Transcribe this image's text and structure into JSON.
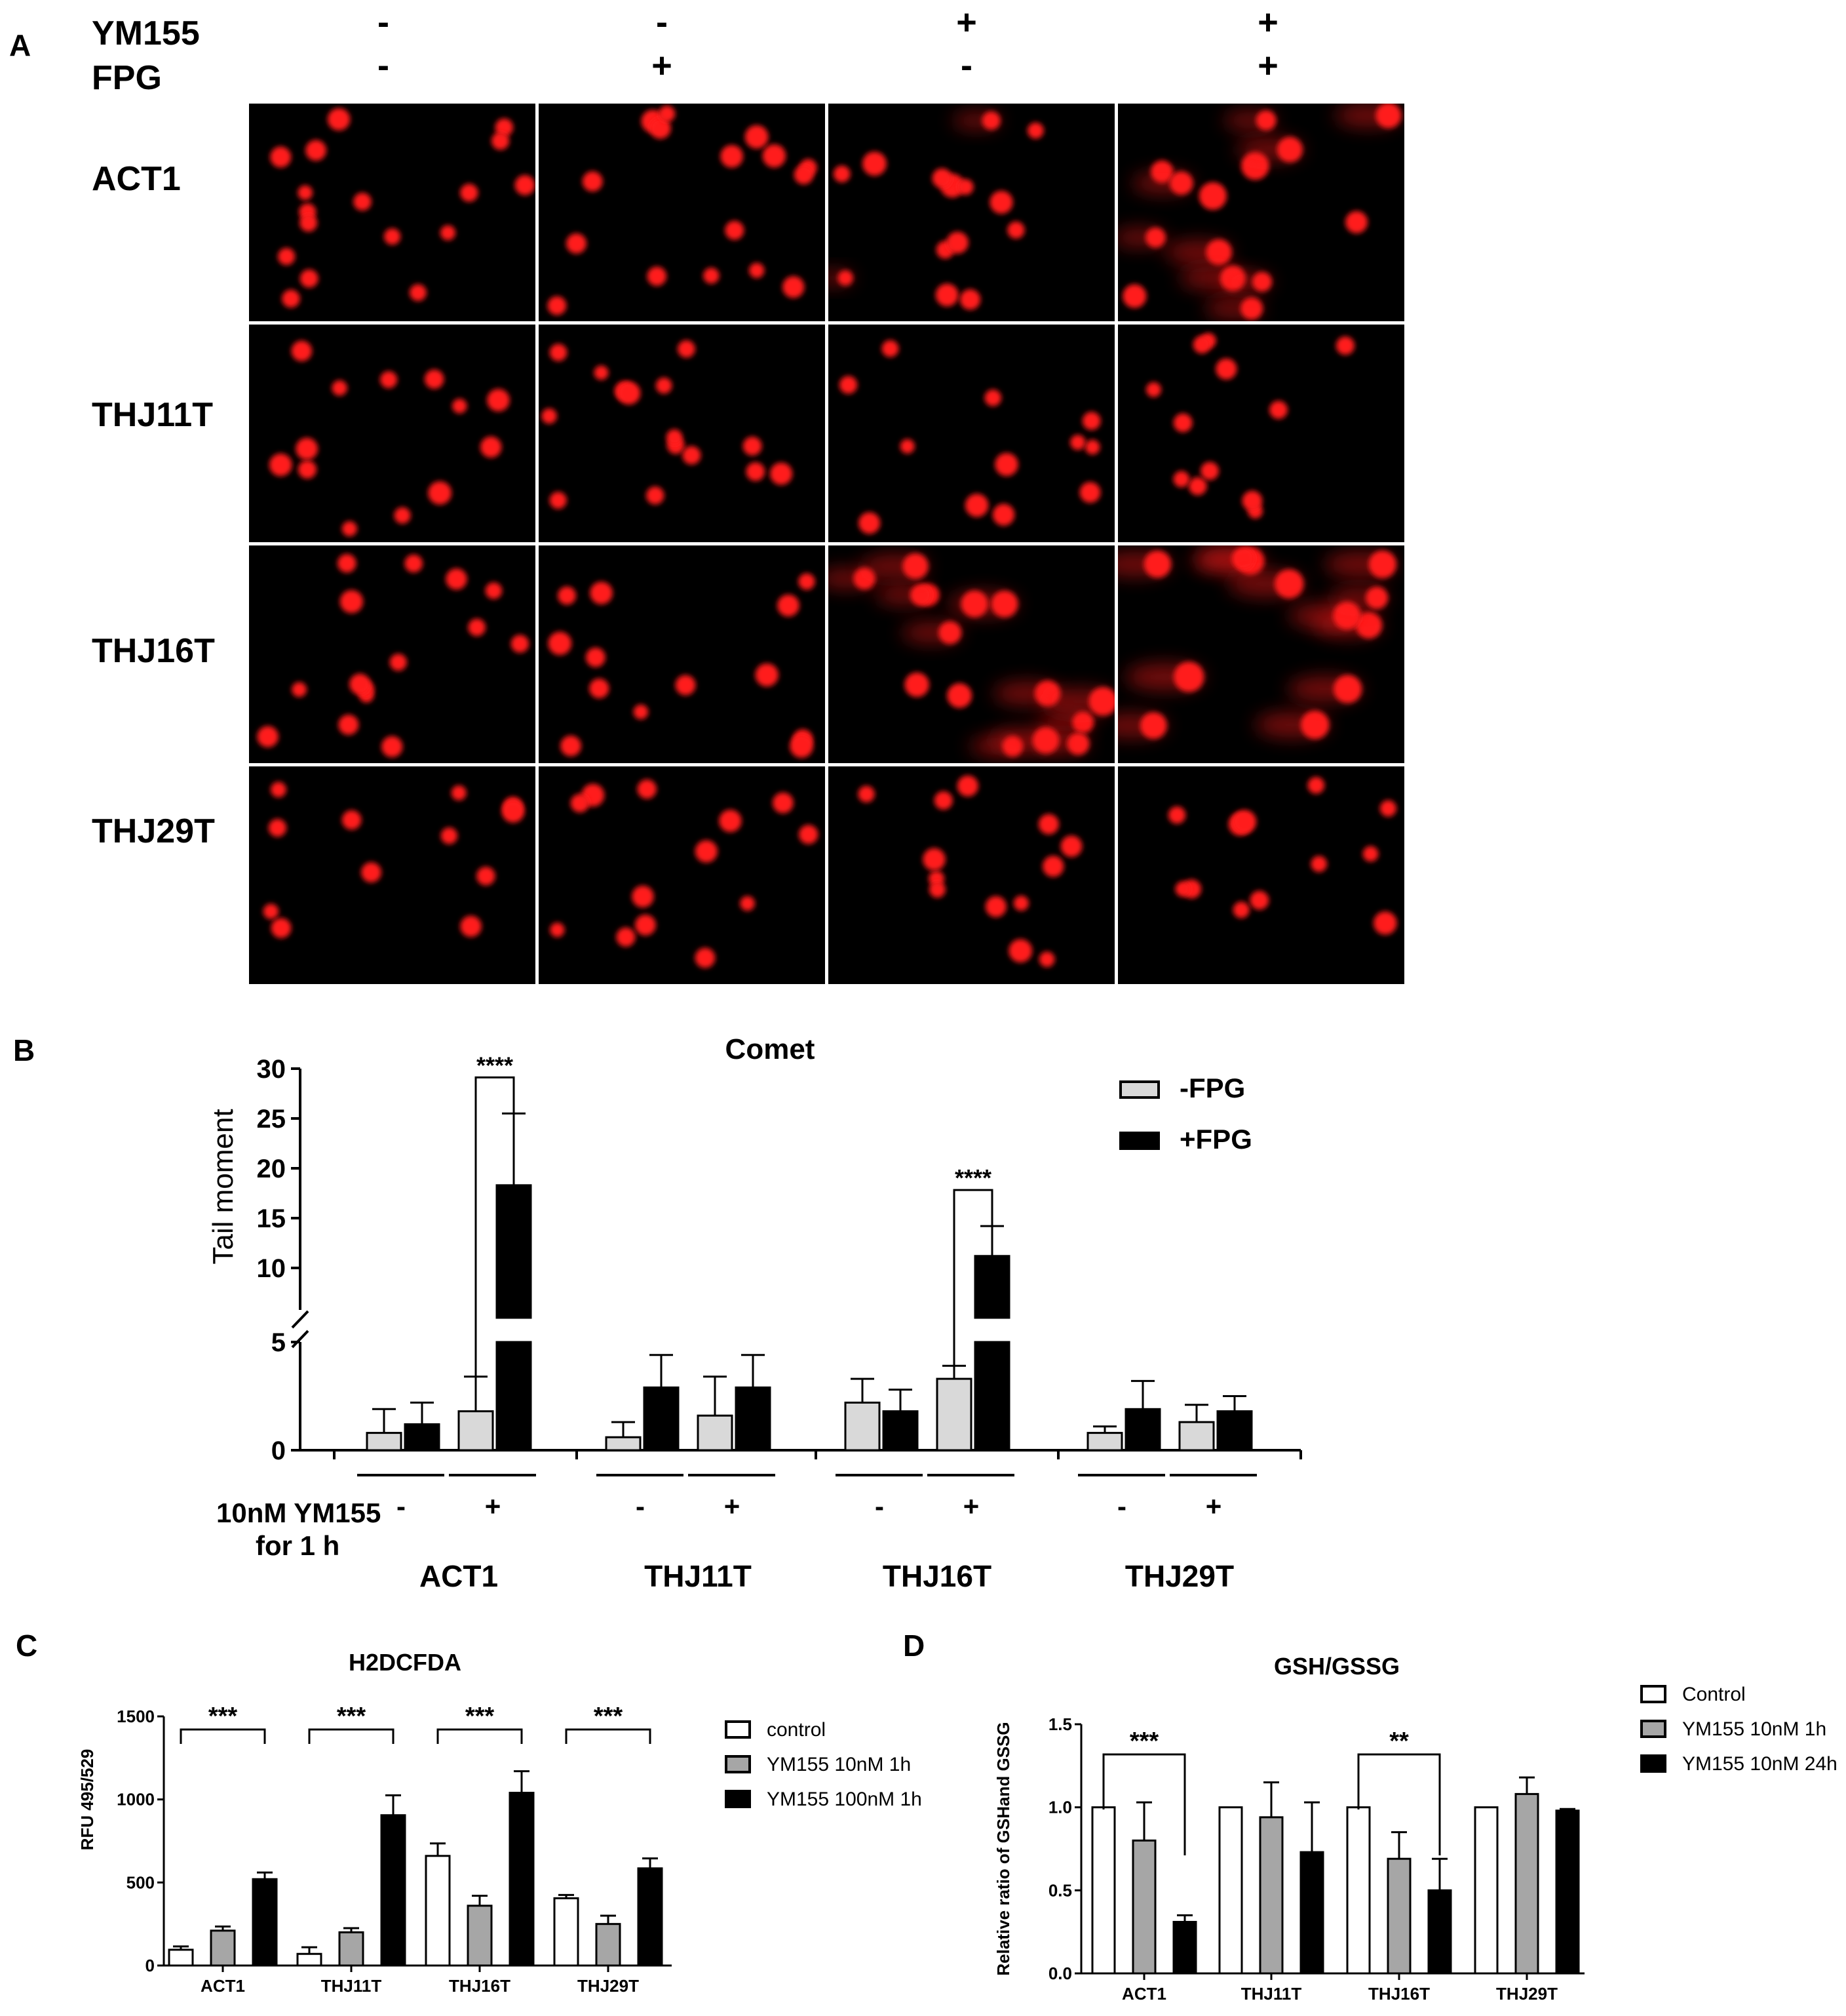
{
  "panel_a": {
    "label": "A",
    "treatments": [
      {
        "name": "YM155",
        "signs": [
          "-",
          "-",
          "+",
          "+"
        ]
      },
      {
        "name": "FPG",
        "signs": [
          "-",
          "+",
          "-",
          "+"
        ]
      }
    ],
    "rows": [
      "ACT1",
      "THJ11T",
      "THJ16T",
      "THJ29T"
    ],
    "image_style": {
      "background": "#000000",
      "nucleus": "#ff1a1a"
    },
    "comet_level": [
      [
        0,
        0,
        0.1,
        0.6
      ],
      [
        0,
        0,
        0,
        0
      ],
      [
        0,
        0,
        0.7,
        1
      ],
      [
        0,
        0,
        0,
        0
      ]
    ]
  },
  "chart_data": [
    {
      "panel": "B",
      "type": "bar",
      "title": "Comet",
      "ylabel": "Tail moment",
      "yaxis_break": {
        "lower": [
          0,
          5
        ],
        "upper": [
          5,
          30
        ]
      },
      "yticks_lower": [
        "0",
        "5"
      ],
      "yticks_upper": [
        "10",
        "15",
        "20",
        "25",
        "30"
      ],
      "xrow_label": [
        "10nM YM155",
        "for 1 h"
      ],
      "groups": [
        "ACT1",
        "THJ11T",
        "THJ16T",
        "THJ29T"
      ],
      "conditions": [
        "-",
        "+"
      ],
      "series": [
        {
          "name": "-FPG",
          "color": "#d9d9d9",
          "values": [
            0.8,
            1.8,
            0.6,
            1.6,
            2.2,
            3.3,
            0.8,
            1.3
          ],
          "errors": [
            1.1,
            1.6,
            0.7,
            1.8,
            1.1,
            0.6,
            0.3,
            0.8
          ]
        },
        {
          "name": "+FPG",
          "color": "#000000",
          "values": [
            1.2,
            18.3,
            2.9,
            2.9,
            1.8,
            11.2,
            1.9,
            1.8
          ],
          "errors": [
            1.0,
            7.2,
            1.5,
            1.5,
            1.0,
            3.0,
            1.3,
            0.7
          ]
        }
      ],
      "significance": [
        {
          "group": "ACT1",
          "label": "****"
        },
        {
          "group": "THJ16T",
          "label": "****"
        }
      ],
      "legend_position": "top-right"
    },
    {
      "panel": "C",
      "type": "bar",
      "title": "H2DCFDA",
      "ylabel": "RFU 495/529",
      "ylim": [
        0,
        1500
      ],
      "yticks": [
        "0",
        "500",
        "1000",
        "1500"
      ],
      "categories": [
        "ACT1",
        "THJ11T",
        "THJ16T",
        "THJ29T"
      ],
      "series": [
        {
          "name": "control",
          "color": "#ffffff",
          "values": [
            95,
            70,
            660,
            405
          ],
          "errors": [
            20,
            40,
            75,
            20
          ]
        },
        {
          "name": "YM155 10nM 1h",
          "color": "#a6a6a6",
          "values": [
            210,
            200,
            360,
            250
          ],
          "errors": [
            25,
            25,
            60,
            50
          ]
        },
        {
          "name": "YM155 100nM 1h",
          "color": "#000000",
          "values": [
            520,
            905,
            1040,
            585
          ],
          "errors": [
            40,
            120,
            130,
            60
          ]
        }
      ],
      "significance": [
        "***",
        "***",
        "***",
        "***"
      ],
      "legend_position": "right"
    },
    {
      "panel": "D",
      "type": "bar",
      "title": "GSH/GSSG",
      "ylabel": "Relative ratio of GSHand GSSG",
      "ylim": [
        0,
        1.5
      ],
      "yticks": [
        "0.0",
        "0.5",
        "1.0",
        "1.5"
      ],
      "categories": [
        "ACT1",
        "THJ11T",
        "THJ16T",
        "THJ29T"
      ],
      "series": [
        {
          "name": "Control",
          "color": "#ffffff",
          "values": [
            1.0,
            1.0,
            1.0,
            1.0
          ],
          "errors": [
            0,
            0,
            0,
            0
          ]
        },
        {
          "name": "YM155 10nM 1h",
          "color": "#a6a6a6",
          "values": [
            0.8,
            0.94,
            0.69,
            1.08
          ],
          "errors": [
            0.23,
            0.21,
            0.16,
            0.1
          ]
        },
        {
          "name": "YM155 10nM 24h",
          "color": "#000000",
          "values": [
            0.31,
            0.73,
            0.5,
            0.98
          ],
          "errors": [
            0.04,
            0.3,
            0.19,
            0.01
          ]
        }
      ],
      "significance": [
        {
          "group": "ACT1",
          "label": "***"
        },
        {
          "group": "THJ16T",
          "label": "**"
        }
      ],
      "legend_position": "top-right"
    }
  ],
  "panel_labels": {
    "b": "B",
    "c": "C",
    "d": "D"
  }
}
